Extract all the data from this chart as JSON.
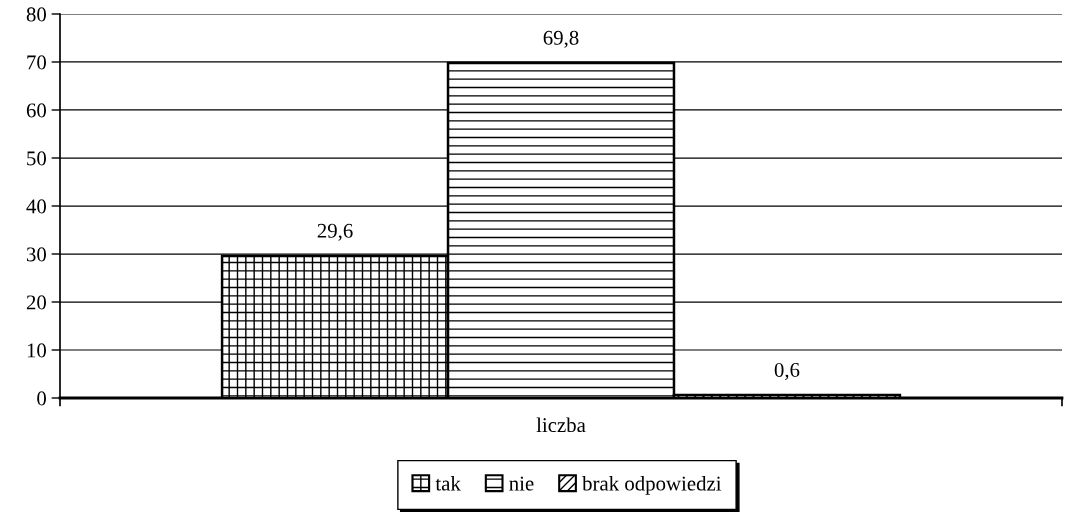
{
  "chart_data": {
    "type": "bar",
    "categories": [
      "liczba"
    ],
    "series": [
      {
        "name": "tak",
        "color": "#000000",
        "values": [
          29.6
        ],
        "value_labels": [
          "29,6"
        ]
      },
      {
        "name": "nie",
        "color": "#000000",
        "values": [
          69.8
        ],
        "value_labels": [
          "69,8"
        ]
      },
      {
        "name": "brak odpowiedzi",
        "color": "#000000",
        "values": [
          0.6
        ],
        "value_labels": [
          "0,6"
        ]
      }
    ],
    "ylim": [
      0,
      80
    ],
    "yticks": [
      0,
      10,
      20,
      30,
      40,
      50,
      60,
      70,
      80
    ],
    "grid": "y",
    "legend": "bottom"
  }
}
